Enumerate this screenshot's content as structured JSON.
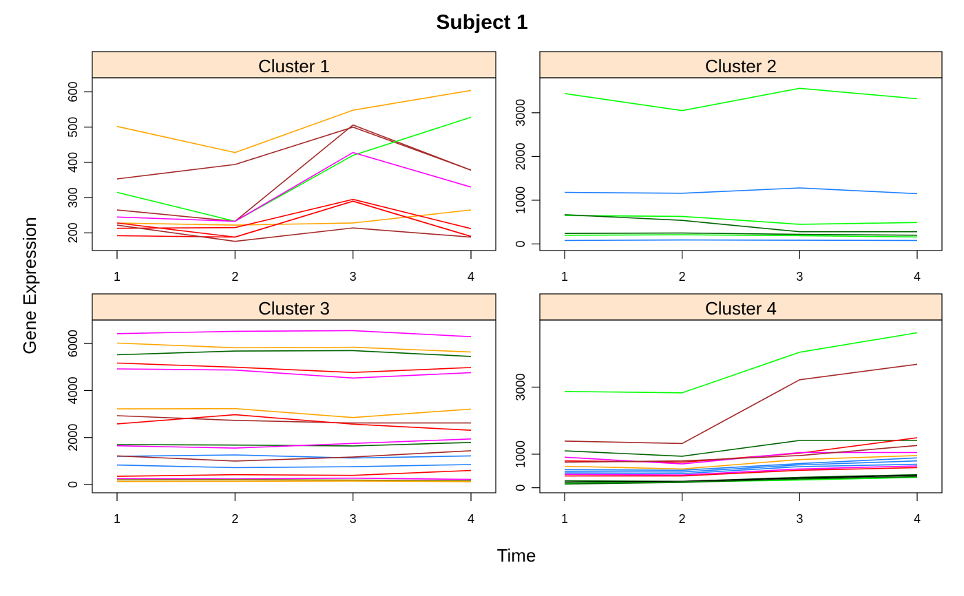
{
  "figure": {
    "title": "Subject 1",
    "xlabel": "Time",
    "ylabel": "Gene Expression"
  },
  "chart_data": [
    {
      "type": "line",
      "title": "Cluster 1",
      "xlabel": "Time",
      "ylabel": "Gene Expression",
      "x": [
        1,
        2,
        3,
        4
      ],
      "x_ticks": [
        1,
        2,
        3,
        4
      ],
      "y_ticks": [
        200,
        300,
        400,
        500,
        600
      ],
      "ylim": [
        150,
        640
      ],
      "series": [
        {
          "color": "#ffa500",
          "values": [
            502,
            428,
            548,
            604
          ]
        },
        {
          "color": "#a52a2a",
          "values": [
            353,
            394,
            500,
            378
          ]
        },
        {
          "color": "#a52a2a",
          "values": [
            265,
            233,
            506,
            378
          ]
        },
        {
          "color": "#00ff00",
          "values": [
            315,
            233,
            420,
            528
          ]
        },
        {
          "color": "#ff00ff",
          "values": [
            245,
            233,
            428,
            330
          ]
        },
        {
          "color": "#ffa500",
          "values": [
            228,
            222,
            228,
            265
          ]
        },
        {
          "color": "#ff0000",
          "values": [
            213,
            215,
            295,
            212
          ]
        },
        {
          "color": "#ff0000",
          "values": [
            228,
            188,
            290,
            190
          ]
        },
        {
          "color": "#ff0000",
          "values": [
            192,
            188,
            290,
            190
          ]
        },
        {
          "color": "#a52a2a",
          "values": [
            222,
            176,
            214,
            188
          ]
        }
      ]
    },
    {
      "type": "line",
      "title": "Cluster 2",
      "xlabel": "Time",
      "ylabel": "Gene Expression",
      "x": [
        1,
        2,
        3,
        4
      ],
      "x_ticks": [
        1,
        2,
        3,
        4
      ],
      "y_ticks": [
        0,
        1000,
        2000,
        3000
      ],
      "ylim": [
        -150,
        3800
      ],
      "series": [
        {
          "color": "#00ff00",
          "values": [
            3440,
            3050,
            3560,
            3320
          ]
        },
        {
          "color": "#1e7fff",
          "values": [
            1180,
            1160,
            1280,
            1150
          ]
        },
        {
          "color": "#00ff00",
          "values": [
            650,
            630,
            450,
            490
          ]
        },
        {
          "color": "#006400",
          "values": [
            670,
            540,
            280,
            280
          ]
        },
        {
          "color": "#006400",
          "values": [
            240,
            250,
            220,
            200
          ]
        },
        {
          "color": "#00ff00",
          "values": [
            200,
            210,
            190,
            160
          ]
        },
        {
          "color": "#1e7fff",
          "values": [
            80,
            90,
            85,
            80
          ]
        }
      ]
    },
    {
      "type": "line",
      "title": "Cluster 3",
      "xlabel": "Time",
      "ylabel": "Gene Expression",
      "x": [
        1,
        2,
        3,
        4
      ],
      "x_ticks": [
        1,
        2,
        3,
        4
      ],
      "y_ticks": [
        0,
        2000,
        4000,
        6000
      ],
      "ylim": [
        -350,
        7000
      ],
      "series": [
        {
          "color": "#ff00ff",
          "values": [
            6420,
            6520,
            6550,
            6290
          ]
        },
        {
          "color": "#ffa500",
          "values": [
            6020,
            5820,
            5840,
            5640
          ]
        },
        {
          "color": "#006400",
          "values": [
            5520,
            5680,
            5700,
            5450
          ]
        },
        {
          "color": "#ff0000",
          "values": [
            5170,
            4990,
            4770,
            4980
          ]
        },
        {
          "color": "#ff00ff",
          "values": [
            4920,
            4870,
            4530,
            4760
          ]
        },
        {
          "color": "#ffa500",
          "values": [
            3220,
            3230,
            2850,
            3210
          ]
        },
        {
          "color": "#a52a2a",
          "values": [
            2930,
            2730,
            2620,
            2620
          ]
        },
        {
          "color": "#ff0000",
          "values": [
            2580,
            2970,
            2570,
            2310
          ]
        },
        {
          "color": "#006400",
          "values": [
            1700,
            1680,
            1640,
            1790
          ]
        },
        {
          "color": "#ff00ff",
          "values": [
            1650,
            1550,
            1750,
            1940
          ]
        },
        {
          "color": "#1e7fff",
          "values": [
            1200,
            1260,
            1130,
            1220
          ]
        },
        {
          "color": "#a52a2a",
          "values": [
            1220,
            1000,
            1170,
            1440
          ]
        },
        {
          "color": "#1e7fff",
          "values": [
            830,
            720,
            760,
            850
          ]
        },
        {
          "color": "#ff0000",
          "values": [
            350,
            420,
            390,
            600
          ]
        },
        {
          "color": "#ff00ff",
          "values": [
            250,
            240,
            270,
            220
          ]
        },
        {
          "color": "#808000",
          "values": [
            200,
            210,
            190,
            160
          ]
        },
        {
          "color": "#ffa500",
          "values": [
            130,
            140,
            150,
            120
          ]
        }
      ]
    },
    {
      "type": "line",
      "title": "Cluster 4",
      "xlabel": "Time",
      "ylabel": "Gene Expression",
      "x": [
        1,
        2,
        3,
        4
      ],
      "x_ticks": [
        1,
        2,
        3,
        4
      ],
      "y_ticks": [
        0,
        1000,
        3000
      ],
      "ylim": [
        -150,
        5000
      ],
      "series": [
        {
          "color": "#00ff00",
          "values": [
            2870,
            2830,
            4040,
            4620
          ]
        },
        {
          "color": "#a52a2a",
          "values": [
            1390,
            1320,
            3220,
            3680
          ]
        },
        {
          "color": "#006400",
          "values": [
            1100,
            940,
            1410,
            1410
          ]
        },
        {
          "color": "#ff0000",
          "values": [
            800,
            760,
            1030,
            1490
          ]
        },
        {
          "color": "#ff00ff",
          "values": [
            910,
            710,
            1050,
            1050
          ]
        },
        {
          "color": "#a52a2a",
          "values": [
            760,
            800,
            960,
            1260
          ]
        },
        {
          "color": "#ffa500",
          "values": [
            640,
            560,
            840,
            960
          ]
        },
        {
          "color": "#1e7fff",
          "values": [
            540,
            520,
            720,
            890
          ]
        },
        {
          "color": "#1e7fff",
          "values": [
            480,
            470,
            680,
            800
          ]
        },
        {
          "color": "#1e7fff",
          "values": [
            440,
            420,
            630,
            700
          ]
        },
        {
          "color": "#ff00ff",
          "values": [
            400,
            380,
            560,
            650
          ]
        },
        {
          "color": "#ff0000",
          "values": [
            350,
            350,
            520,
            600
          ]
        },
        {
          "color": "#006400",
          "values": [
            210,
            190,
            310,
            390
          ]
        },
        {
          "color": "#000000",
          "values": [
            170,
            190,
            290,
            370
          ]
        },
        {
          "color": "#00ff00",
          "values": [
            130,
            170,
            230,
            310
          ]
        },
        {
          "color": "#006400",
          "values": [
            110,
            160,
            260,
            330
          ]
        }
      ]
    }
  ]
}
